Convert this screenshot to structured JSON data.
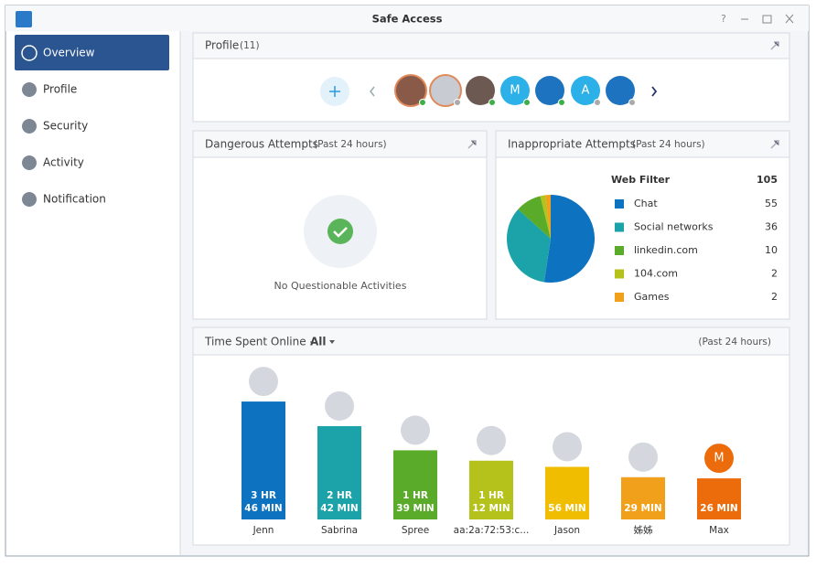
{
  "window": {
    "title": "Safe Access"
  },
  "sidebar": {
    "items": [
      "Overview",
      "Profile",
      "Security",
      "Activity",
      "Notification"
    ]
  },
  "profile_panel": {
    "title": "Profile",
    "count": "(11)",
    "letters": [
      "M",
      "A"
    ]
  },
  "dangerous_panel": {
    "title": "Dangerous Attempts",
    "subtitle": "(Past 24 hours)",
    "message": "No Questionable Activities"
  },
  "inappropriate_panel": {
    "title": "Inappropriate Attempts",
    "subtitle": "(Past 24 hours)"
  },
  "chart_data": [
    {
      "type": "pie",
      "title": "Web Filter",
      "total": 105,
      "categories": [
        "Chat",
        "Social networks",
        "linkedin.com",
        "104.com",
        "Games"
      ],
      "values": [
        55,
        36,
        10,
        2,
        2
      ],
      "colors": [
        "#0d72c0",
        "#1ca3aa",
        "#5aab2a",
        "#b5c21c",
        "#f0a01a"
      ]
    },
    {
      "type": "bar",
      "title": "Time Spent Online -",
      "filter": "All",
      "subtitle": "(Past 24 hours)",
      "categories": [
        "Jenn",
        "Sabrina",
        "Spree",
        "aa:2a:72:53:c...",
        "Jason",
        "姊姊",
        "Max"
      ],
      "values": [
        226,
        162,
        99,
        72,
        56,
        29,
        26
      ],
      "value_labels": [
        [
          "3 HR",
          "46 MIN"
        ],
        [
          "2 HR",
          "42 MIN"
        ],
        [
          "1 HR",
          "39 MIN"
        ],
        [
          "1 HR",
          "12 MIN"
        ],
        [
          "56 MIN"
        ],
        [
          "29 MIN"
        ],
        [
          "26 MIN"
        ]
      ],
      "colors": [
        "#0d72c0",
        "#1ca3aa",
        "#5aab2a",
        "#b5c21c",
        "#f0bd00",
        "#f0a01a",
        "#ec6c0c"
      ],
      "avatar_letter": "M"
    }
  ]
}
